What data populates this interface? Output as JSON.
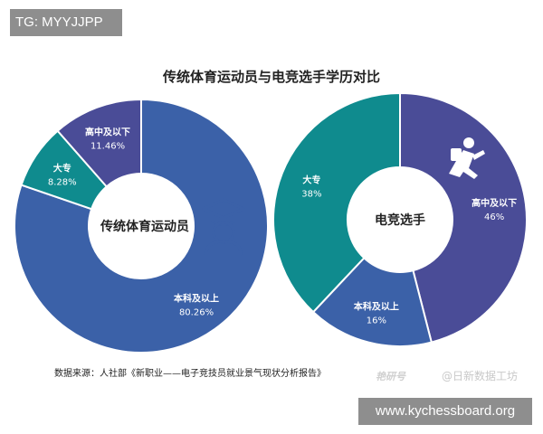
{
  "watermark_top": "TG: MYYJJPP",
  "watermark_bottom": "www.kychessboard.org",
  "credit": "@日新数据工坊",
  "credit_logo": "艳研号",
  "source_note": "数据来源：人社部《新职业——电子竞技员就业景气现状分析报告》",
  "colors": {
    "blue": "#3b61a8",
    "teal": "#0f8b8e",
    "purple": "#4a4c97",
    "title": "#222222"
  },
  "icons": {
    "left_center": "graduate-icon",
    "right_slice": "running-person-icon"
  },
  "chart_data": {
    "type": "pie",
    "title": "传统体育运动员与电竞选手学历对比",
    "charts": [
      {
        "center_label": "传统体育运动员",
        "slices": [
          {
            "label": "本科及以上",
            "value": 80.26,
            "display": "80.26%",
            "color": "#3b61a8"
          },
          {
            "label": "大专",
            "value": 8.28,
            "display": "8.28%",
            "color": "#0f8b8e"
          },
          {
            "label": "高中及以下",
            "value": 11.46,
            "display": "11.46%",
            "color": "#4a4c97"
          }
        ]
      },
      {
        "center_label": "电竞选手",
        "slices": [
          {
            "label": "高中及以下",
            "value": 46,
            "display": "46%",
            "color": "#4a4c97"
          },
          {
            "label": "本科及以上",
            "value": 16,
            "display": "16%",
            "color": "#3b61a8"
          },
          {
            "label": "大专",
            "value": 38,
            "display": "38%",
            "color": "#0f8b8e"
          }
        ]
      }
    ]
  }
}
